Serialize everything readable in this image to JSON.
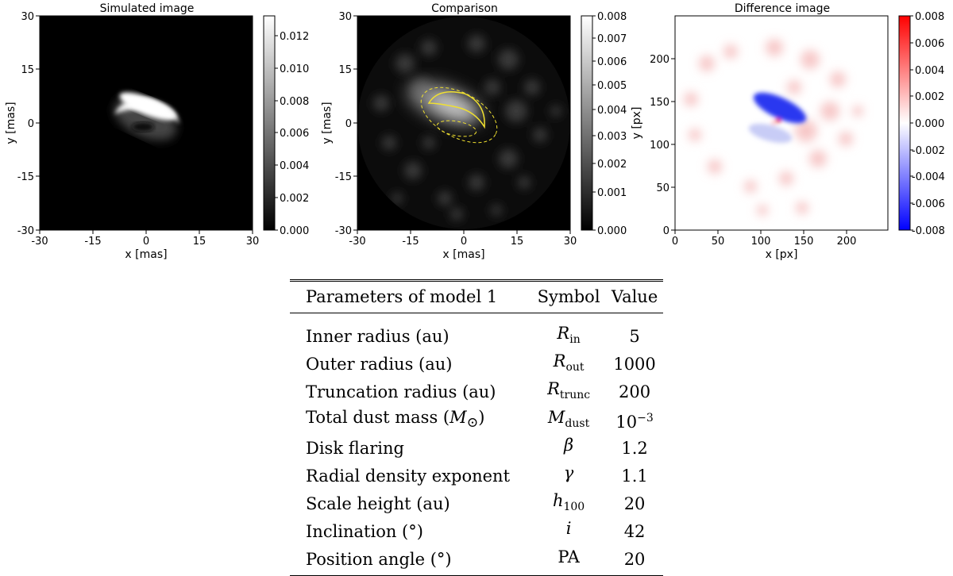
{
  "panels": {
    "simulated": {
      "title": "Simulated image",
      "xlabel": "x [mas]",
      "ylabel": "y [mas]",
      "x_ticks": [
        "-30",
        "-15",
        "0",
        "15",
        "30"
      ],
      "y_ticks": [
        "30",
        "15",
        "0",
        "-15",
        "-30"
      ],
      "colorbar_ticks": [
        "0.012",
        "0.010",
        "0.008",
        "0.006",
        "0.004",
        "0.002",
        "0.000"
      ]
    },
    "comparison": {
      "title": "Comparison",
      "xlabel": "x [mas]",
      "ylabel": "y [mas]",
      "x_ticks": [
        "-30",
        "-15",
        "0",
        "15",
        "30"
      ],
      "y_ticks": [
        "30",
        "15",
        "0",
        "-15",
        "-30"
      ],
      "colorbar_ticks": [
        "0.008",
        "0.007",
        "0.006",
        "0.005",
        "0.004",
        "0.003",
        "0.002",
        "0.001",
        "0.000"
      ]
    },
    "difference": {
      "title": "Difference image",
      "xlabel": "x [px]",
      "ylabel": "y [px]",
      "x_ticks": [
        "0",
        "50",
        "100",
        "150",
        "200"
      ],
      "y_ticks": [
        "200",
        "150",
        "100",
        "50",
        "0"
      ],
      "colorbar_ticks": [
        "0.008",
        "0.006",
        "0.004",
        "0.002",
        "0.000",
        "-0.002",
        "-0.004",
        "-0.006",
        "-0.008"
      ]
    }
  },
  "colors": {
    "contour": "#f0e030",
    "positive": "#e00000",
    "negative": "#0000ff"
  },
  "table": {
    "header": {
      "param": "Parameters of model 1",
      "symbol": "Symbol",
      "value": "Value"
    },
    "rows": [
      {
        "param": "Inner radius (au)",
        "symbol_main": "R",
        "symbol_sub": "in",
        "value": "5"
      },
      {
        "param": "Outer radius (au)",
        "symbol_main": "R",
        "symbol_sub": "out",
        "value": "1000"
      },
      {
        "param": "Truncation radius (au)",
        "symbol_main": "R",
        "symbol_sub": "trunc",
        "value": "200"
      },
      {
        "param_main": "Total dust mass (",
        "param_unit": "M",
        "param_unit_sub": "⊙",
        "param_close": ")",
        "symbol_main": "M",
        "symbol_sub": "dust",
        "value_base": "10",
        "value_exp": "−3"
      },
      {
        "param": "Disk flaring",
        "symbol_main": "β",
        "symbol_sub": "",
        "value": "1.2"
      },
      {
        "param": "Radial density exponent",
        "symbol_main": "γ",
        "symbol_sub": "",
        "value": "1.1"
      },
      {
        "param": "Scale height (au)",
        "symbol_main": "h",
        "symbol_sub": "100",
        "value": "20"
      },
      {
        "param": "Inclination (°)",
        "symbol_main": "i",
        "symbol_sub": "",
        "value": "42"
      },
      {
        "param": "Position angle (°)",
        "symbol_main": "PA",
        "symbol_sub": "",
        "value": "20"
      }
    ]
  }
}
